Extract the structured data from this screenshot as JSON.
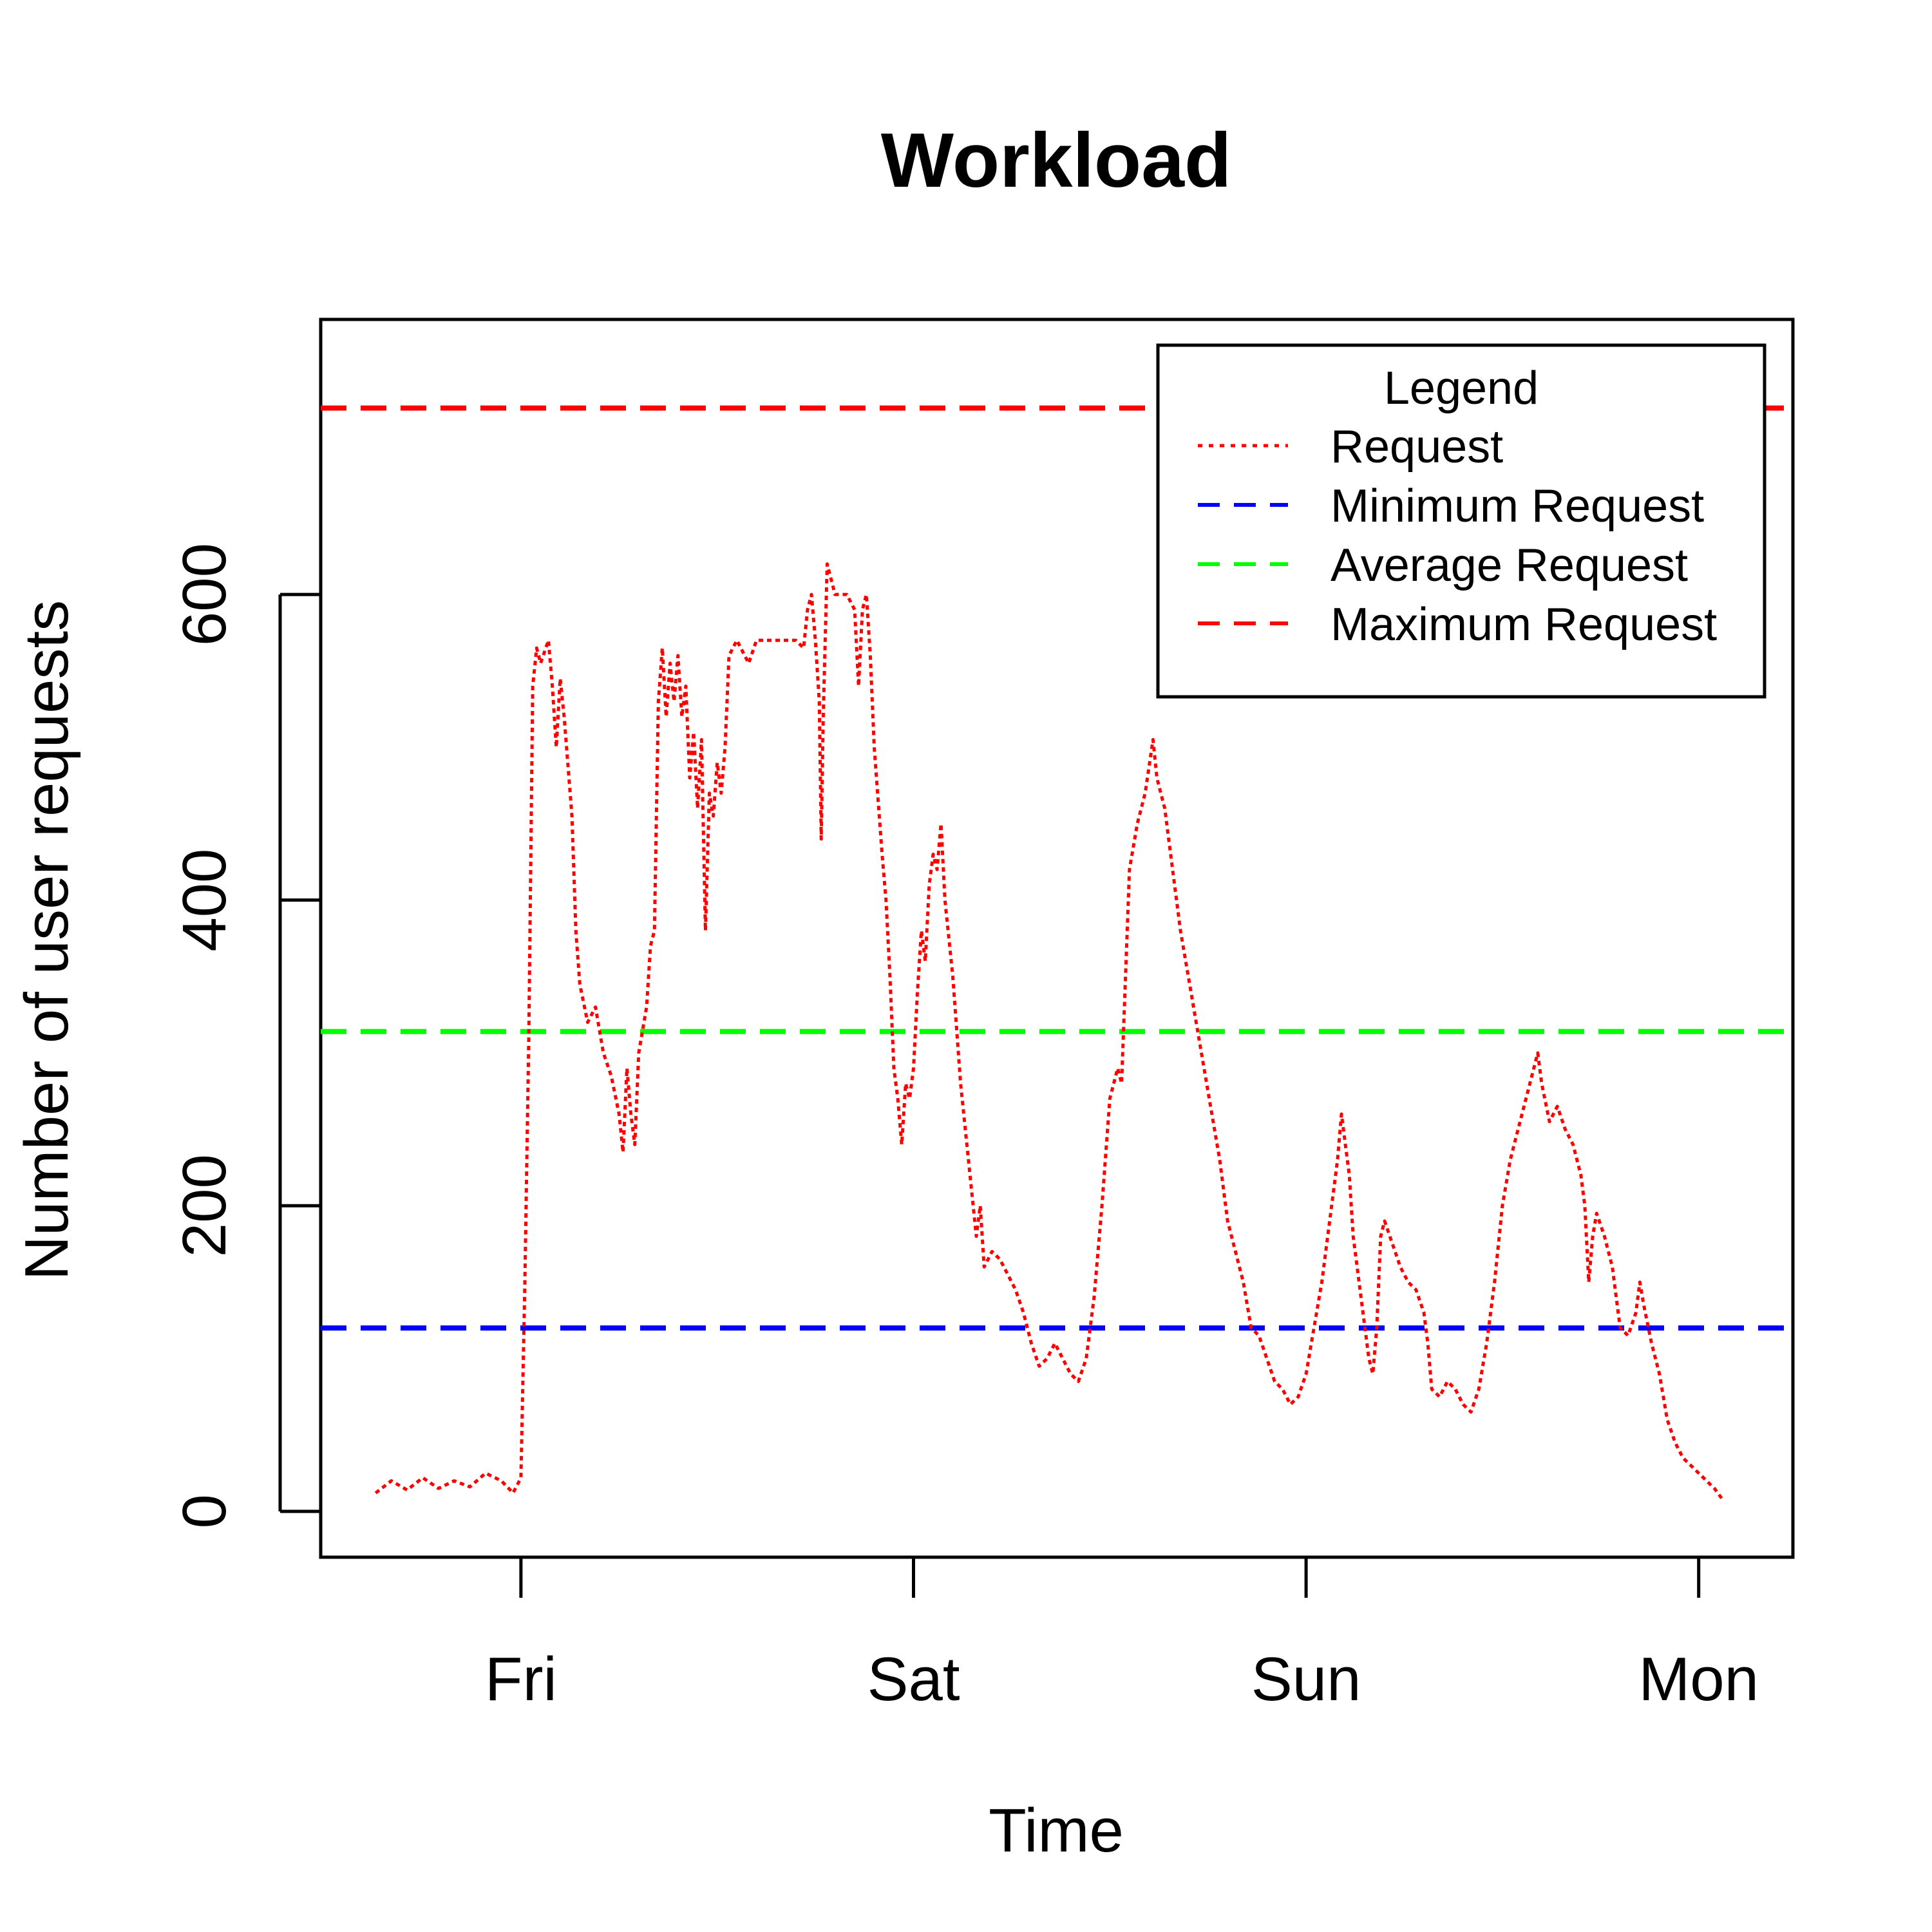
{
  "chart_data": {
    "type": "line",
    "title": "Workload",
    "xlabel": "Time",
    "ylabel": "Number of user requests",
    "ylim": [
      -30,
      780
    ],
    "xlim": [
      -0.51,
      3.24
    ],
    "x_ticks": [
      {
        "label": "Fri",
        "value": 0
      },
      {
        "label": "Sat",
        "value": 1
      },
      {
        "label": "Sun",
        "value": 2
      },
      {
        "label": "Mon",
        "value": 3
      }
    ],
    "y_ticks": [
      0,
      200,
      400,
      600
    ],
    "grid": false,
    "legend": {
      "title": "Legend",
      "position": "top-right",
      "entries": [
        {
          "label": "Request",
          "color": "#ff0000",
          "style": "dotted"
        },
        {
          "label": "Minimum Request",
          "color": "#0000ff",
          "style": "dashed"
        },
        {
          "label": "Average Request",
          "color": "#00ff00",
          "style": "dashed"
        },
        {
          "label": "Maximum Request",
          "color": "#ff0000",
          "style": "dashed"
        }
      ]
    },
    "reference_lines": [
      {
        "name": "Minimum Request",
        "y": 120,
        "color": "#0000ff"
      },
      {
        "name": "Average Request",
        "y": 314,
        "color": "#00ff00"
      },
      {
        "name": "Maximum Request",
        "y": 722,
        "color": "#ff0000"
      }
    ],
    "series": [
      {
        "name": "Request",
        "color": "#ff0000",
        "points": [
          [
            -0.37,
            12
          ],
          [
            -0.33,
            20
          ],
          [
            -0.29,
            14
          ],
          [
            -0.25,
            22
          ],
          [
            -0.21,
            15
          ],
          [
            -0.17,
            20
          ],
          [
            -0.13,
            16
          ],
          [
            -0.09,
            25
          ],
          [
            -0.05,
            20
          ],
          [
            -0.02,
            12
          ],
          [
            0.0,
            22
          ],
          [
            0.01,
            150
          ],
          [
            0.02,
            310
          ],
          [
            0.03,
            540
          ],
          [
            0.04,
            565
          ],
          [
            0.05,
            555
          ],
          [
            0.07,
            570
          ],
          [
            0.08,
            540
          ],
          [
            0.09,
            500
          ],
          [
            0.1,
            545
          ],
          [
            0.11,
            520
          ],
          [
            0.13,
            455
          ],
          [
            0.14,
            380
          ],
          [
            0.15,
            345
          ],
          [
            0.17,
            320
          ],
          [
            0.19,
            330
          ],
          [
            0.21,
            300
          ],
          [
            0.23,
            285
          ],
          [
            0.25,
            260
          ],
          [
            0.26,
            235
          ],
          [
            0.27,
            290
          ],
          [
            0.28,
            260
          ],
          [
            0.29,
            240
          ],
          [
            0.3,
            300
          ],
          [
            0.32,
            330
          ],
          [
            0.33,
            370
          ],
          [
            0.34,
            380
          ],
          [
            0.35,
            530
          ],
          [
            0.36,
            565
          ],
          [
            0.37,
            520
          ],
          [
            0.38,
            555
          ],
          [
            0.39,
            530
          ],
          [
            0.4,
            560
          ],
          [
            0.41,
            520
          ],
          [
            0.42,
            540
          ],
          [
            0.43,
            480
          ],
          [
            0.44,
            510
          ],
          [
            0.45,
            460
          ],
          [
            0.46,
            505
          ],
          [
            0.47,
            380
          ],
          [
            0.48,
            470
          ],
          [
            0.49,
            455
          ],
          [
            0.5,
            490
          ],
          [
            0.51,
            470
          ],
          [
            0.52,
            500
          ],
          [
            0.53,
            560
          ],
          [
            0.55,
            570
          ],
          [
            0.58,
            555
          ],
          [
            0.6,
            570
          ],
          [
            0.65,
            570
          ],
          [
            0.7,
            570
          ],
          [
            0.72,
            565
          ],
          [
            0.73,
            590
          ],
          [
            0.74,
            600
          ],
          [
            0.75,
            570
          ],
          [
            0.76,
            530
          ],
          [
            0.765,
            440
          ],
          [
            0.77,
            520
          ],
          [
            0.78,
            620
          ],
          [
            0.79,
            610
          ],
          [
            0.8,
            600
          ],
          [
            0.83,
            600
          ],
          [
            0.85,
            590
          ],
          [
            0.86,
            540
          ],
          [
            0.87,
            590
          ],
          [
            0.88,
            600
          ],
          [
            0.89,
            560
          ],
          [
            0.9,
            500
          ],
          [
            0.92,
            430
          ],
          [
            0.93,
            400
          ],
          [
            0.94,
            350
          ],
          [
            0.95,
            290
          ],
          [
            0.96,
            270
          ],
          [
            0.97,
            240
          ],
          [
            0.98,
            280
          ],
          [
            0.99,
            270
          ],
          [
            1.0,
            290
          ],
          [
            1.01,
            340
          ],
          [
            1.02,
            380
          ],
          [
            1.03,
            360
          ],
          [
            1.04,
            410
          ],
          [
            1.05,
            430
          ],
          [
            1.06,
            420
          ],
          [
            1.07,
            450
          ],
          [
            1.08,
            400
          ],
          [
            1.1,
            350
          ],
          [
            1.12,
            280
          ],
          [
            1.14,
            230
          ],
          [
            1.16,
            180
          ],
          [
            1.17,
            200
          ],
          [
            1.18,
            160
          ],
          [
            1.2,
            170
          ],
          [
            1.22,
            165
          ],
          [
            1.24,
            155
          ],
          [
            1.26,
            145
          ],
          [
            1.28,
            130
          ],
          [
            1.3,
            110
          ],
          [
            1.32,
            95
          ],
          [
            1.34,
            100
          ],
          [
            1.36,
            110
          ],
          [
            1.38,
            100
          ],
          [
            1.4,
            90
          ],
          [
            1.42,
            85
          ],
          [
            1.44,
            100
          ],
          [
            1.46,
            140
          ],
          [
            1.48,
            200
          ],
          [
            1.5,
            270
          ],
          [
            1.52,
            290
          ],
          [
            1.53,
            280
          ],
          [
            1.55,
            420
          ],
          [
            1.57,
            450
          ],
          [
            1.59,
            470
          ],
          [
            1.61,
            505
          ],
          [
            1.62,
            480
          ],
          [
            1.64,
            460
          ],
          [
            1.66,
            420
          ],
          [
            1.68,
            380
          ],
          [
            1.7,
            350
          ],
          [
            1.72,
            320
          ],
          [
            1.74,
            290
          ],
          [
            1.76,
            260
          ],
          [
            1.78,
            230
          ],
          [
            1.8,
            190
          ],
          [
            1.82,
            170
          ],
          [
            1.84,
            150
          ],
          [
            1.86,
            120
          ],
          [
            1.88,
            115
          ],
          [
            1.9,
            100
          ],
          [
            1.92,
            85
          ],
          [
            1.94,
            80
          ],
          [
            1.96,
            70
          ],
          [
            1.98,
            75
          ],
          [
            2.0,
            90
          ],
          [
            2.02,
            120
          ],
          [
            2.04,
            150
          ],
          [
            2.06,
            190
          ],
          [
            2.08,
            230
          ],
          [
            2.09,
            260
          ],
          [
            2.1,
            240
          ],
          [
            2.11,
            220
          ],
          [
            2.12,
            180
          ],
          [
            2.13,
            160
          ],
          [
            2.15,
            120
          ],
          [
            2.16,
            100
          ],
          [
            2.17,
            90
          ],
          [
            2.18,
            120
          ],
          [
            2.19,
            180
          ],
          [
            2.2,
            190
          ],
          [
            2.22,
            175
          ],
          [
            2.24,
            160
          ],
          [
            2.26,
            150
          ],
          [
            2.28,
            145
          ],
          [
            2.3,
            130
          ],
          [
            2.31,
            110
          ],
          [
            2.32,
            80
          ],
          [
            2.34,
            75
          ],
          [
            2.36,
            85
          ],
          [
            2.38,
            80
          ],
          [
            2.4,
            70
          ],
          [
            2.42,
            65
          ],
          [
            2.44,
            80
          ],
          [
            2.46,
            110
          ],
          [
            2.48,
            150
          ],
          [
            2.5,
            200
          ],
          [
            2.52,
            230
          ],
          [
            2.54,
            250
          ],
          [
            2.56,
            270
          ],
          [
            2.58,
            290
          ],
          [
            2.59,
            300
          ],
          [
            2.6,
            280
          ],
          [
            2.62,
            255
          ],
          [
            2.64,
            265
          ],
          [
            2.66,
            250
          ],
          [
            2.68,
            240
          ],
          [
            2.7,
            220
          ],
          [
            2.71,
            200
          ],
          [
            2.72,
            150
          ],
          [
            2.73,
            180
          ],
          [
            2.74,
            195
          ],
          [
            2.76,
            180
          ],
          [
            2.78,
            160
          ],
          [
            2.8,
            120
          ],
          [
            2.82,
            115
          ],
          [
            2.84,
            130
          ],
          [
            2.85,
            150
          ],
          [
            2.86,
            135
          ],
          [
            2.88,
            110
          ],
          [
            2.9,
            90
          ],
          [
            2.92,
            60
          ],
          [
            2.94,
            45
          ],
          [
            2.96,
            35
          ],
          [
            2.98,
            30
          ],
          [
            3.0,
            25
          ],
          [
            3.02,
            20
          ],
          [
            3.04,
            15
          ],
          [
            3.06,
            8
          ]
        ]
      }
    ]
  }
}
